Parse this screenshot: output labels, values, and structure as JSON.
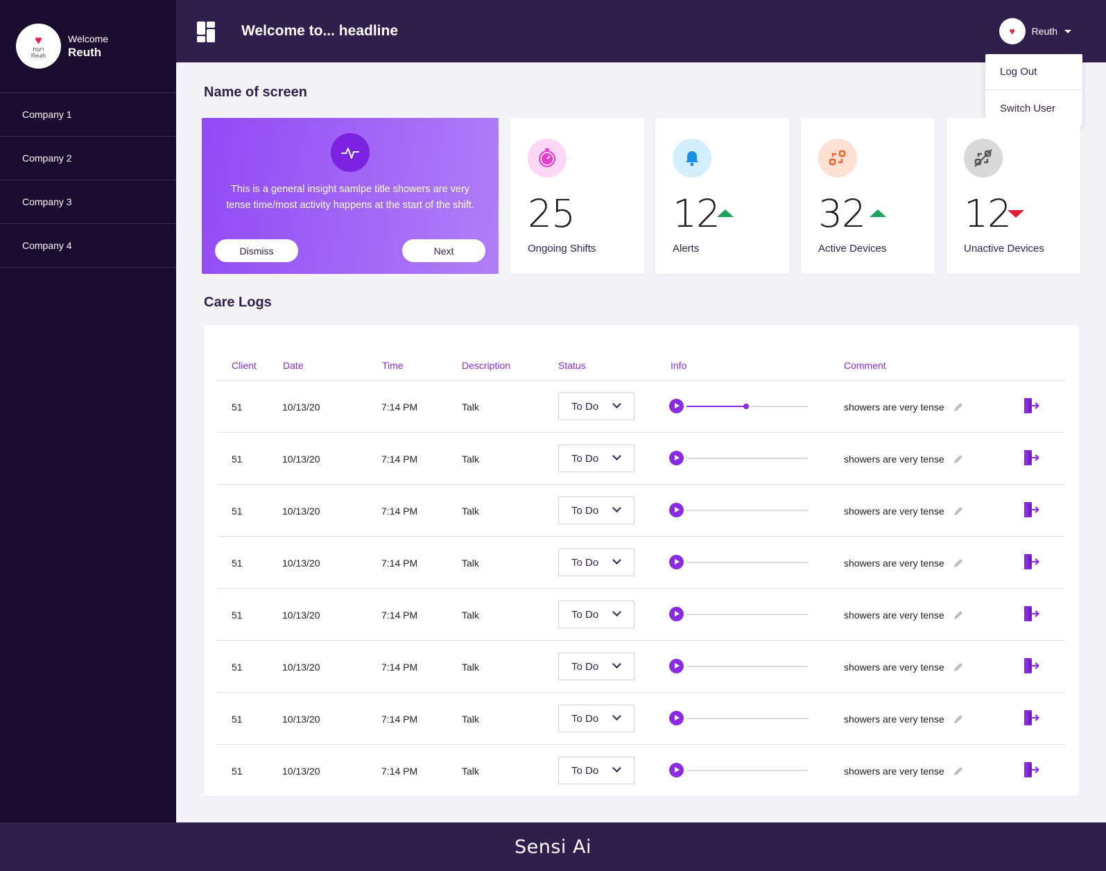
{
  "sidebar": {
    "logo_text": "רעות",
    "logo_sub": "Reuth",
    "welcome": "Welcome",
    "user": "Reuth",
    "items": [
      {
        "label": "Company 1"
      },
      {
        "label": "Company 2"
      },
      {
        "label": "Company 3"
      },
      {
        "label": "Company 4"
      }
    ]
  },
  "header": {
    "headline": "Welcome to... headline",
    "user_name": "Reuth",
    "menu": [
      {
        "label": "Log Out"
      },
      {
        "label": "Switch User"
      }
    ]
  },
  "main": {
    "screen_title": "Name of screen",
    "insight": {
      "text": "This is a general insight samlpe title showers are very tense time/most activity happens at the start of the shift.",
      "dismiss": "Dismiss",
      "next": "Next"
    },
    "stats": [
      {
        "value": "25",
        "label": "Ongoing Shifts",
        "icon": "timer-icon",
        "trend": "none"
      },
      {
        "value": "12",
        "label": "Alerts",
        "icon": "bell-icon",
        "trend": "up"
      },
      {
        "value": "32",
        "label": "Active Devices",
        "icon": "device-link-icon",
        "trend": "up"
      },
      {
        "value": "12",
        "label": "Unactive Devices",
        "icon": "device-unlink-icon",
        "trend": "down"
      }
    ],
    "care_logs_title": "Care Logs",
    "table": {
      "headers": [
        "Client",
        "Date",
        "Time",
        "Description",
        "Status",
        "Info",
        "Comment"
      ],
      "rows": [
        {
          "client": "51",
          "date": "10/13/20",
          "time": "7:14 PM",
          "description": "Talk",
          "status": "To Do",
          "progress": 0.49,
          "comment": "showers are very tense"
        },
        {
          "client": "51",
          "date": "10/13/20",
          "time": "7:14 PM",
          "description": "Talk",
          "status": "To Do",
          "progress": 0,
          "comment": "showers are very tense"
        },
        {
          "client": "51",
          "date": "10/13/20",
          "time": "7:14 PM",
          "description": "Talk",
          "status": "To Do",
          "progress": 0,
          "comment": "showers are very tense"
        },
        {
          "client": "51",
          "date": "10/13/20",
          "time": "7:14 PM",
          "description": "Talk",
          "status": "To Do",
          "progress": 0,
          "comment": "showers are very tense"
        },
        {
          "client": "51",
          "date": "10/13/20",
          "time": "7:14 PM",
          "description": "Talk",
          "status": "To Do",
          "progress": 0,
          "comment": "showers are very tense"
        },
        {
          "client": "51",
          "date": "10/13/20",
          "time": "7:14 PM",
          "description": "Talk",
          "status": "To Do",
          "progress": 0,
          "comment": "showers are very tense"
        },
        {
          "client": "51",
          "date": "10/13/20",
          "time": "7:14 PM",
          "description": "Talk",
          "status": "To Do",
          "progress": 0,
          "comment": "showers are very tense"
        },
        {
          "client": "51",
          "date": "10/13/20",
          "time": "7:14 PM",
          "description": "Talk",
          "status": "To Do",
          "progress": 0,
          "comment": "showers are very tense"
        }
      ]
    }
  },
  "footer": {
    "brand": "Sensi Ai"
  },
  "colors": {
    "sidebar_bg": "#1a0c2e",
    "topbar_bg": "#2e1f4c",
    "accent": "#8a2be2",
    "trend_up": "#1ea35d",
    "trend_down": "#e21e35"
  }
}
